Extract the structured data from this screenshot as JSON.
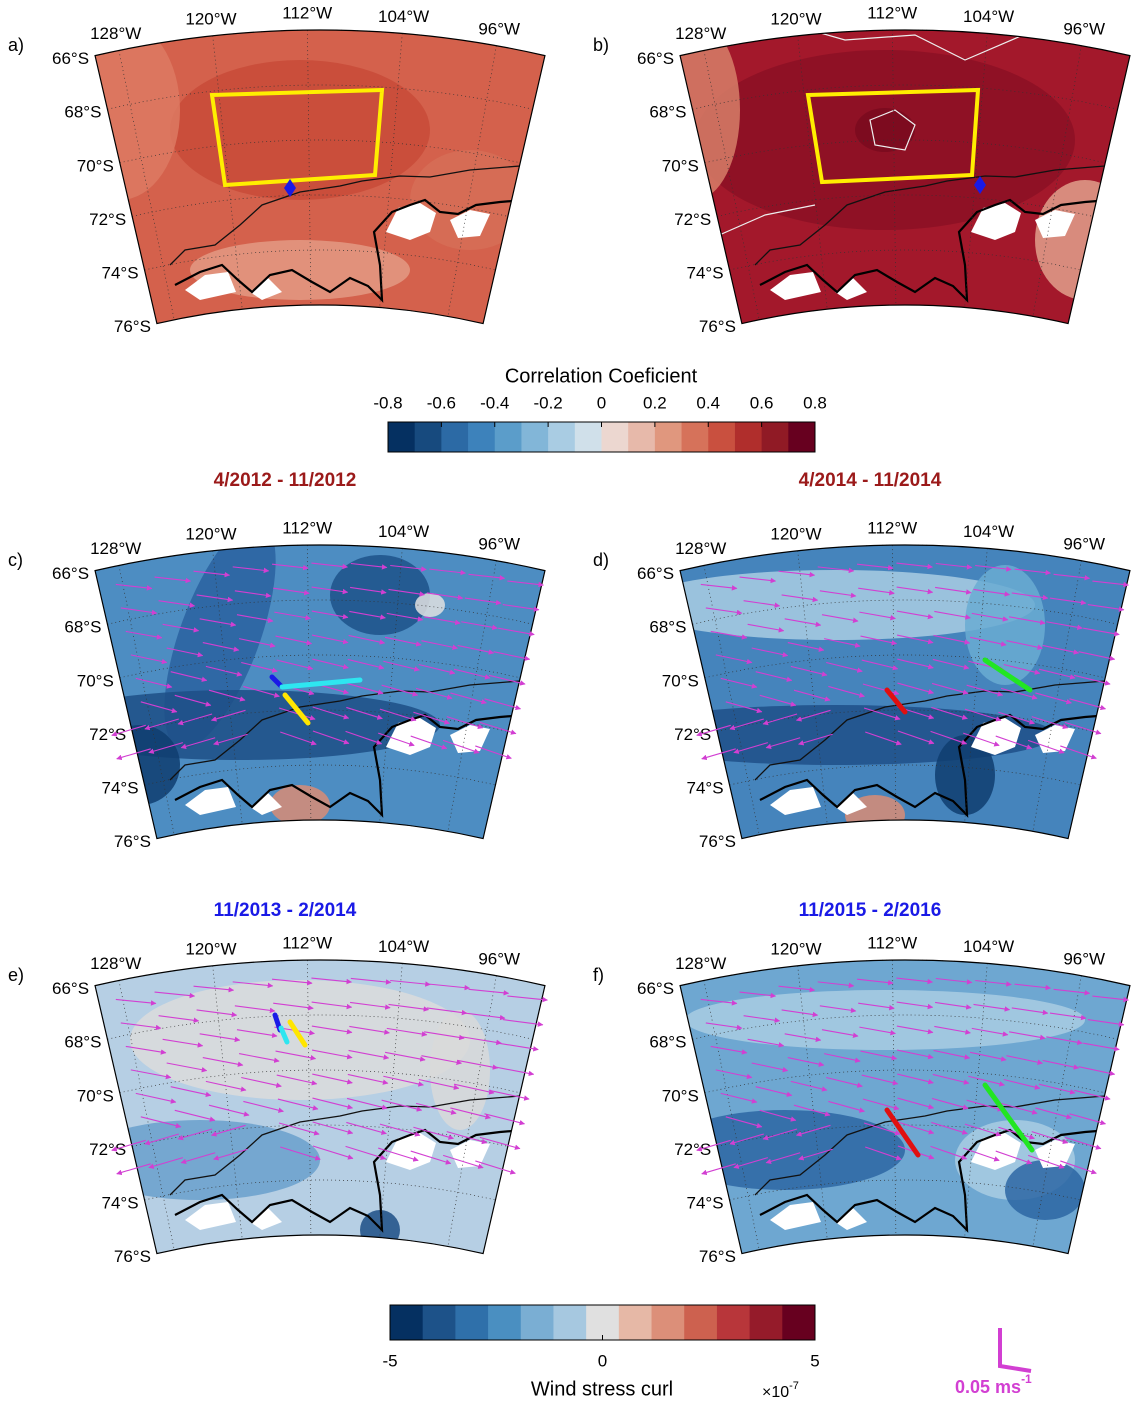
{
  "panels": [
    {
      "label": "a)"
    },
    {
      "label": "b)"
    },
    {
      "label": "c)"
    },
    {
      "label": "d)"
    },
    {
      "label": "e)"
    },
    {
      "label": "f)"
    }
  ],
  "map": {
    "lon_labels": [
      "128°W",
      "120°W",
      "112°W",
      "104°W",
      "96°W"
    ],
    "lat_labels": [
      "66°S",
      "68°S",
      "70°S",
      "72°S",
      "74°S",
      "76°S"
    ]
  },
  "colorbar_top": {
    "title": "Correlation Coeficient",
    "lim": [
      -0.8,
      0.8
    ],
    "ticks": [
      -0.8,
      -0.6,
      -0.4,
      -0.2,
      0,
      0.2,
      0.4,
      0.6,
      0.8
    ],
    "colors": [
      "#053061",
      "#174a7e",
      "#2c6aa5",
      "#3d82bb",
      "#5b9dca",
      "#82b6d8",
      "#a9cce3",
      "#d0e0ea",
      "#ecd7d0",
      "#e7b9aa",
      "#e0977e",
      "#d6725a",
      "#c9503f",
      "#b02e2c",
      "#901a25",
      "#67001f"
    ]
  },
  "period_titles": [
    {
      "text": "4/2012 - 11/2012",
      "color": "#9b1a1a"
    },
    {
      "text": "4/2014 - 11/2014",
      "color": "#9b1a1a"
    },
    {
      "text": "11/2013 - 2/2014",
      "color": "#1a1ae6"
    },
    {
      "text": "11/2015 - 2/2016",
      "color": "#1a1ae6"
    }
  ],
  "scale_arrow": {
    "label": "0.05 ms",
    "superscript": "-1",
    "color": "#d23fd2"
  },
  "colorbar_bottom": {
    "title": "Wind stress curl",
    "lim": [
      -5,
      5
    ],
    "ticks": [
      -5,
      0,
      5
    ],
    "multiplier": "×10",
    "exponent": "-7",
    "colors": [
      "#053061",
      "#1d5289",
      "#2f70aa",
      "#4a8fc1",
      "#7aaed3",
      "#a6c8e0",
      "#e0e0e0",
      "#e6b8a6",
      "#dc8f79",
      "#cd614f",
      "#b8363a",
      "#951b2a",
      "#67001f"
    ]
  }
}
